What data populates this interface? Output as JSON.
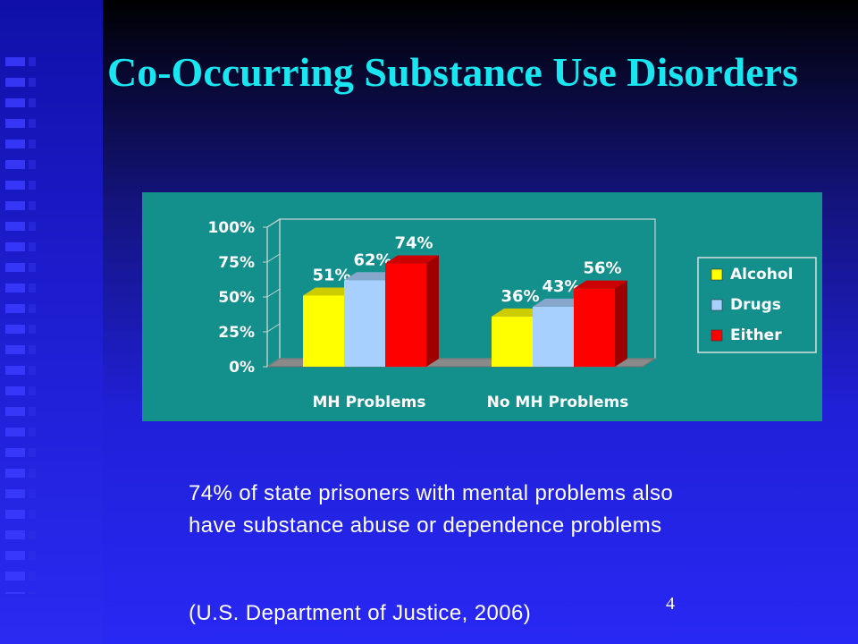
{
  "slide": {
    "title": "Co-Occurring Substance Use Disorders",
    "caption": "74% of state prisoners with mental problems also have substance abuse or dependence problems",
    "source": "(U.S. Department of Justice, 2006)",
    "page_number": "4"
  },
  "colors": {
    "chart_background": "#138f8c",
    "title": "#18e6f0",
    "Alcohol": "#ffff00",
    "Drugs": "#a8d0ff",
    "Either": "#ff0000"
  },
  "chart_data": {
    "type": "bar",
    "title": "",
    "xlabel": "",
    "ylabel": "",
    "categories": [
      "MH Problems",
      "No MH Problems"
    ],
    "series": [
      {
        "name": "Alcohol",
        "values": [
          51,
          36
        ],
        "labels": [
          "51%",
          "36%"
        ]
      },
      {
        "name": "Drugs",
        "values": [
          62,
          43
        ],
        "labels": [
          "62%",
          "43%"
        ]
      },
      {
        "name": "Either",
        "values": [
          74,
          56
        ],
        "labels": [
          "74%",
          "56%"
        ]
      }
    ],
    "ylim": [
      0,
      100
    ],
    "yticks": [
      0,
      25,
      50,
      75,
      100
    ],
    "ytick_labels": [
      "0%",
      "25%",
      "50%",
      "75%",
      "100%"
    ],
    "grid": false,
    "style": "3d-clustered",
    "legend": {
      "position": "right",
      "entries": [
        "Alcohol",
        "Drugs",
        "Either"
      ]
    }
  }
}
